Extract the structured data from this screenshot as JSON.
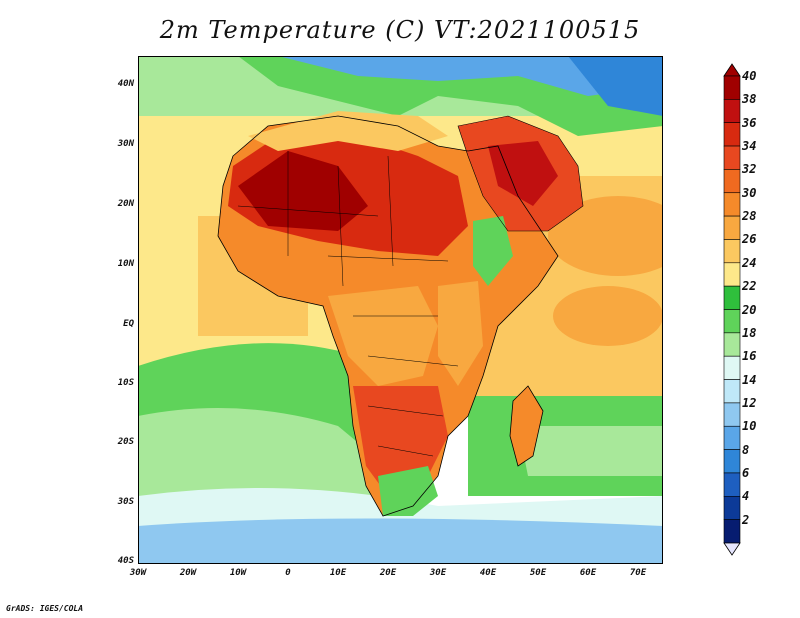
{
  "title": "2m Temperature (C) VT:2021100515",
  "credit": "GrADS: IGES/COLA",
  "map": {
    "lat_ticks": [
      "40N",
      "30N",
      "20N",
      "10N",
      "EQ",
      "10S",
      "20S",
      "30S",
      "40S"
    ],
    "lon_ticks": [
      "30W",
      "20W",
      "10W",
      "0",
      "10E",
      "20E",
      "30E",
      "40E",
      "50E",
      "60E",
      "70E"
    ],
    "lon_range": [
      -30,
      75
    ],
    "lat_range": [
      -40,
      45
    ]
  },
  "colorbar": {
    "labels": [
      "40",
      "38",
      "36",
      "34",
      "32",
      "30",
      "28",
      "26",
      "24",
      "22",
      "20",
      "18",
      "16",
      "14",
      "12",
      "10",
      "8",
      "6",
      "4",
      "2"
    ],
    "colors": [
      "#a00000",
      "#c01010",
      "#d82a10",
      "#e84820",
      "#f06a20",
      "#f58a2a",
      "#f8a840",
      "#fbc860",
      "#fde88a",
      "#2fbf3c",
      "#5fd35a",
      "#a8e89a",
      "#dff8f4",
      "#bfe8f8",
      "#8fc8f0",
      "#5aa6e8",
      "#2f86d8",
      "#1e5fc0",
      "#0c3a98",
      "#061c70"
    ]
  }
}
